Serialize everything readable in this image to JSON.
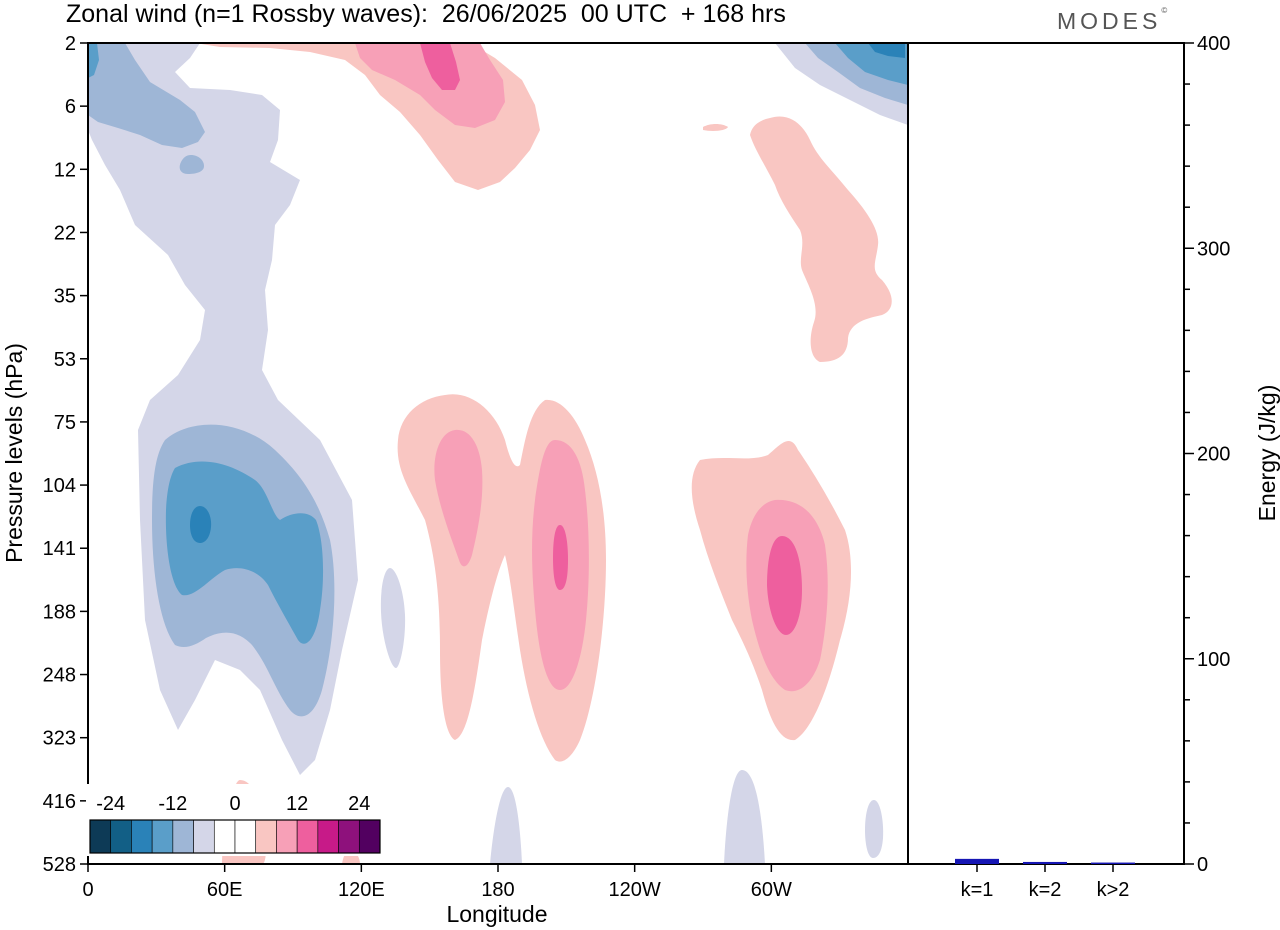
{
  "title": "Zonal wind (n=1 Rossby waves):  26/06/2025  00 UTC  + 168 hrs",
  "brand": "MODES",
  "brand_mark": "©",
  "chart_data": [
    {
      "type": "heatmap",
      "title": "Zonal wind (n=1 Rossby waves):  26/06/2025  00 UTC  + 168 hrs",
      "xlabel": "Longitude",
      "ylabel": "Pressure levels (hPa)",
      "x_ticks": [
        "0",
        "60E",
        "120E",
        "180",
        "120W",
        "60W"
      ],
      "x_tick_degrees": [
        0,
        60,
        120,
        180,
        240,
        300
      ],
      "x_range": [
        0,
        360
      ],
      "y_ticks": [
        "2",
        "6",
        "12",
        "22",
        "35",
        "53",
        "75",
        "104",
        "141",
        "188",
        "248",
        "323",
        "416",
        "528"
      ],
      "y_scale": "pressure levels (top 2 hPa, bottom 528 hPa)",
      "colorbar": {
        "labels": [
          "-24",
          "-12",
          "0",
          "12",
          "24"
        ],
        "levels": [
          -28,
          -24,
          -20,
          -16,
          -12,
          -8,
          -4,
          4,
          8,
          12,
          16,
          20,
          24
        ],
        "colors": [
          "#0d3a56",
          "#125f86",
          "#2a82b8",
          "#5a9ec9",
          "#9eb6d6",
          "#d4d6e8",
          "#ffffff",
          "#ffffff",
          "#f9c6c2",
          "#f7a0b7",
          "#ee5f9e",
          "#c71a88",
          "#8e117c",
          "#520060"
        ]
      },
      "features": [
        {
          "sign": "negative",
          "lon": 45,
          "level": "104-248",
          "peak": -16
        },
        {
          "sign": "negative",
          "lon": 70,
          "level": "141-248",
          "peak": -12
        },
        {
          "sign": "negative",
          "lon": 15,
          "level": "2-12",
          "peak": -8
        },
        {
          "sign": "negative",
          "lon": 345,
          "level": "2-6",
          "peak": -16
        },
        {
          "sign": "positive",
          "lon": 160,
          "level": "75-141",
          "peak": 8
        },
        {
          "sign": "positive",
          "lon": 200,
          "level": "104-248",
          "peak": 12
        },
        {
          "sign": "positive",
          "lon": 300,
          "level": "104-248",
          "peak": 12
        },
        {
          "sign": "positive",
          "lon": 155,
          "level": "2-6",
          "peak": 12
        },
        {
          "sign": "positive",
          "lon": 325,
          "level": "6-53",
          "peak": 4
        }
      ]
    },
    {
      "type": "bar",
      "ylabel": "Energy (J/kg)",
      "categories": [
        "k=1",
        "k=2",
        "k>2"
      ],
      "values": [
        2.5,
        1.0,
        0.7
      ],
      "ylim": [
        0,
        400
      ],
      "y_ticks": [
        "0",
        "100",
        "200",
        "300",
        "400"
      ],
      "bar_color": "#1616b4"
    }
  ]
}
